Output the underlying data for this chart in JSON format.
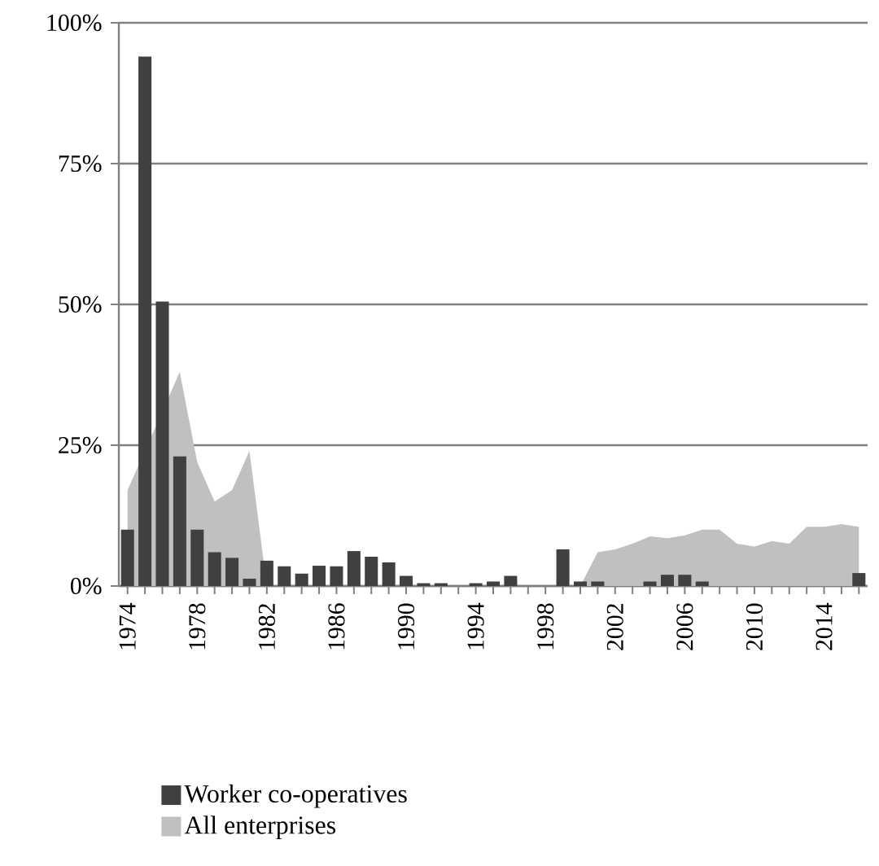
{
  "chart_data": {
    "type": "bar",
    "categories": [
      "1974",
      null,
      null,
      null,
      "1978",
      null,
      null,
      null,
      "1982",
      null,
      null,
      null,
      "1986",
      null,
      null,
      null,
      "1990",
      null,
      null,
      null,
      "1994",
      null,
      null,
      null,
      "1998",
      null,
      null,
      null,
      "2002",
      null,
      null,
      null,
      "2006",
      null,
      null,
      null,
      "2010",
      null,
      null,
      null,
      "2014",
      null,
      null
    ],
    "series": [
      {
        "name": "Worker co-operatives",
        "color": "#404040",
        "values": [
          10,
          94,
          50.5,
          23,
          10,
          6,
          5,
          1.3,
          4.5,
          3.5,
          2.2,
          3.6,
          3.5,
          6.2,
          5.2,
          4.2,
          1.8,
          0.5,
          0.5,
          0,
          0.5,
          0.8,
          1.8,
          0,
          0,
          6.5,
          0.8,
          0.8,
          0,
          0,
          0.8,
          2,
          2,
          0.8,
          0,
          0,
          0,
          0,
          0,
          0,
          0,
          0,
          2.3
        ]
      },
      {
        "name": "All enterprises",
        "type": "area",
        "color": "#c0c0c0",
        "values": [
          17,
          null,
          null,
          38,
          22,
          15,
          17,
          24,
          0,
          0,
          0,
          0,
          0,
          0,
          0,
          0,
          0,
          0,
          0,
          0,
          0,
          0,
          0,
          0,
          0,
          0,
          0,
          6,
          6.5,
          7.5,
          8.8,
          8.5,
          9,
          10,
          10,
          7.5,
          7,
          8,
          7.5,
          10.5,
          10.5,
          11,
          10.5
        ]
      }
    ],
    "ylim": [
      0,
      100
    ],
    "yticks": [
      {
        "value": 0,
        "label": "0%"
      },
      {
        "value": 25,
        "label": "25%"
      },
      {
        "value": 50,
        "label": "50%"
      },
      {
        "value": 75,
        "label": "75%"
      },
      {
        "value": 100,
        "label": "100%"
      }
    ],
    "grid": "y",
    "legend": "bottom"
  }
}
